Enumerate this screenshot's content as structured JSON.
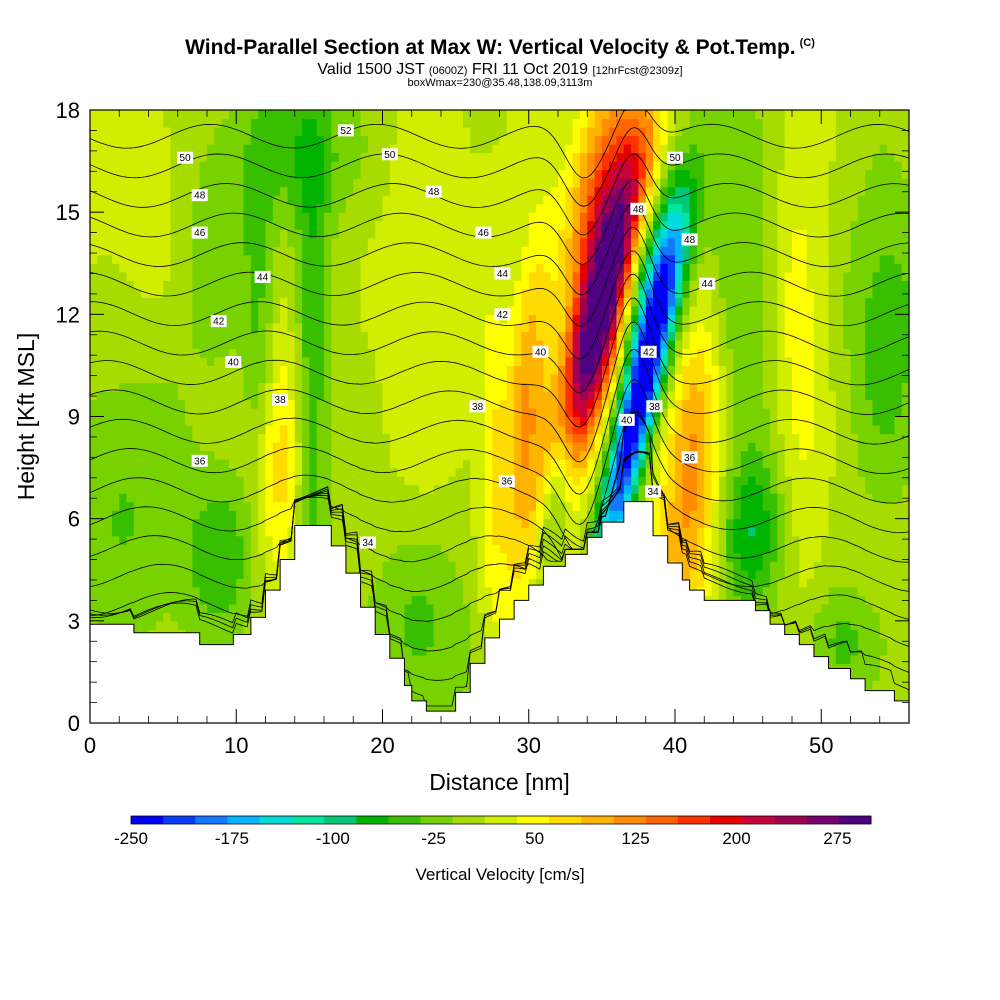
{
  "header": {
    "title": "Wind-Parallel Section at Max W: Vertical Velocity & Pot.Temp.",
    "title_mark": "(C)",
    "valid_prefix": "Valid 1500 JST",
    "valid_utc": "(0600Z)",
    "valid_date": "FRI 11 Oct 2019",
    "forecast_note": "[12hrFcst@2309z]",
    "box_note": "boxWmax=230@35.48,138.09,3113m"
  },
  "chart_data": {
    "type": "heatmap",
    "xlabel": "Distance [nm]",
    "ylabel": "Height [Kft MSL]",
    "xlim": [
      0,
      56
    ],
    "ylim": [
      0,
      18
    ],
    "x_ticks": [
      0,
      10,
      20,
      30,
      40,
      50
    ],
    "y_ticks": [
      0,
      3,
      6,
      9,
      12,
      15,
      18
    ],
    "colorbar": {
      "label": "Vertical Velocity [cm/s]",
      "min": -250,
      "max": 300,
      "tick_values": [
        -250,
        -175,
        -100,
        -25,
        50,
        125,
        200,
        275
      ],
      "tick_labels": [
        "-250",
        "-175",
        "-100",
        "-25",
        "50",
        "125",
        "200",
        "275"
      ],
      "colors": [
        "#0000ff",
        "#0a3cff",
        "#1478ff",
        "#00b4ff",
        "#00dcdc",
        "#00e6a0",
        "#00c878",
        "#00b400",
        "#38c000",
        "#78d200",
        "#a8dc00",
        "#d2ee00",
        "#ffff00",
        "#ffdc00",
        "#ffb400",
        "#ff8c00",
        "#ff6400",
        "#ff3200",
        "#e60000",
        "#c8003c",
        "#a00050",
        "#78006e",
        "#500082"
      ]
    },
    "terrain_profile": [
      [
        0,
        2.9
      ],
      [
        3,
        2.9
      ],
      [
        3,
        2.65
      ],
      [
        7.5,
        2.65
      ],
      [
        7.5,
        2.3
      ],
      [
        9.8,
        2.3
      ],
      [
        9.8,
        2.6
      ],
      [
        11,
        2.6
      ],
      [
        11,
        3.1
      ],
      [
        12,
        3.1
      ],
      [
        12,
        3.9
      ],
      [
        13,
        3.9
      ],
      [
        13,
        4.8
      ],
      [
        14,
        4.8
      ],
      [
        14,
        5.8
      ],
      [
        16.5,
        5.8
      ],
      [
        16.5,
        5.2
      ],
      [
        17.5,
        5.2
      ],
      [
        17.5,
        4.4
      ],
      [
        18.5,
        4.4
      ],
      [
        18.5,
        3.4
      ],
      [
        19.5,
        3.4
      ],
      [
        19.5,
        2.6
      ],
      [
        20.5,
        2.6
      ],
      [
        20.5,
        1.9
      ],
      [
        21.5,
        1.9
      ],
      [
        21.5,
        1.1
      ],
      [
        22,
        1.1
      ],
      [
        22,
        0.65
      ],
      [
        23,
        0.65
      ],
      [
        23,
        0.35
      ],
      [
        25,
        0.35
      ],
      [
        25,
        0.9
      ],
      [
        26,
        0.9
      ],
      [
        26,
        1.75
      ],
      [
        27,
        1.75
      ],
      [
        27,
        2.5
      ],
      [
        28,
        2.5
      ],
      [
        28,
        3.05
      ],
      [
        29,
        3.05
      ],
      [
        29,
        3.6
      ],
      [
        30,
        3.6
      ],
      [
        30,
        4.05
      ],
      [
        31,
        4.05
      ],
      [
        31,
        4.6
      ],
      [
        32.5,
        4.6
      ],
      [
        32.5,
        4.95
      ],
      [
        34,
        4.95
      ],
      [
        34,
        5.45
      ],
      [
        35,
        5.45
      ],
      [
        35,
        5.9
      ],
      [
        36.5,
        5.9
      ],
      [
        36.5,
        6.5
      ],
      [
        38.5,
        6.5
      ],
      [
        38.5,
        5.5
      ],
      [
        39.5,
        5.5
      ],
      [
        39.5,
        4.7
      ],
      [
        40.5,
        4.7
      ],
      [
        40.5,
        4.2
      ],
      [
        41,
        4.2
      ],
      [
        41,
        3.9
      ],
      [
        42,
        3.9
      ],
      [
        42,
        3.6
      ],
      [
        45.5,
        3.6
      ],
      [
        45.5,
        3.3
      ],
      [
        46.5,
        3.3
      ],
      [
        46.5,
        2.9
      ],
      [
        47.5,
        2.9
      ],
      [
        47.5,
        2.6
      ],
      [
        48.5,
        2.6
      ],
      [
        48.5,
        2.3
      ],
      [
        49.5,
        2.3
      ],
      [
        49.5,
        1.95
      ],
      [
        50.5,
        1.95
      ],
      [
        50.5,
        1.6
      ],
      [
        52,
        1.6
      ],
      [
        52,
        1.3
      ],
      [
        53,
        1.3
      ],
      [
        53,
        0.95
      ],
      [
        55,
        0.95
      ],
      [
        55,
        0.65
      ],
      [
        56,
        0.65
      ]
    ],
    "velocity_features": [
      {
        "x": 34.6,
        "y": 11.5,
        "sx": 1.2,
        "sy": 3.8,
        "slope": 0.55,
        "value": 300
      },
      {
        "x": 35.0,
        "y": 15.5,
        "sx": 1.6,
        "sy": 2.6,
        "slope": 0.3,
        "value": 140
      },
      {
        "x": 37.4,
        "y": 9.2,
        "sx": 0.9,
        "sy": 3.6,
        "slope": 0.5,
        "value": -270
      },
      {
        "x": 38.8,
        "y": 13.2,
        "sx": 1.5,
        "sy": 2.0,
        "slope": 0.35,
        "value": -120
      },
      {
        "x": 32.0,
        "y": 7.0,
        "sx": 0.8,
        "sy": 2.0,
        "slope": 0.35,
        "value": -140
      },
      {
        "x": 29.8,
        "y": 9.3,
        "sx": 1.0,
        "sy": 3.6,
        "slope": 0.15,
        "value": 95
      },
      {
        "x": 41.0,
        "y": 6.0,
        "sx": 1.7,
        "sy": 3.0,
        "slope": 0.2,
        "value": 85
      },
      {
        "x": 41.3,
        "y": 9.5,
        "sx": 1.2,
        "sy": 2.5,
        "slope": 0.1,
        "value": 50
      },
      {
        "x": 12.8,
        "y": 7.8,
        "sx": 1.2,
        "sy": 2.6,
        "slope": 0.0,
        "value": 70
      },
      {
        "x": 15.2,
        "y": 10.0,
        "sx": 0.8,
        "sy": 6.0,
        "slope": 0.0,
        "value": -65
      },
      {
        "x": 11.6,
        "y": 11.5,
        "sx": 0.8,
        "sy": 3.5,
        "slope": 0.0,
        "value": -50
      },
      {
        "x": 8.5,
        "y": 14.0,
        "sx": 2.0,
        "sy": 3.0,
        "slope": 0.0,
        "value": -40
      },
      {
        "x": 14.5,
        "y": 16.8,
        "sx": 3.0,
        "sy": 1.6,
        "slope": 0.0,
        "value": -55
      },
      {
        "x": 2.5,
        "y": 6.5,
        "sx": 3.0,
        "sy": 3.5,
        "slope": 0.0,
        "value": -45
      },
      {
        "x": 9.0,
        "y": 4.8,
        "sx": 1.8,
        "sy": 1.8,
        "slope": 0.0,
        "value": -60
      },
      {
        "x": 22.5,
        "y": 2.8,
        "sx": 3.0,
        "sy": 2.2,
        "slope": 0.0,
        "value": -50
      },
      {
        "x": 27.5,
        "y": 7.5,
        "sx": 0.7,
        "sy": 4.0,
        "slope": 0.0,
        "value": 45
      },
      {
        "x": 45.5,
        "y": 5.6,
        "sx": 1.7,
        "sy": 1.6,
        "slope": 0.0,
        "value": -75
      },
      {
        "x": 44.5,
        "y": 12.0,
        "sx": 1.6,
        "sy": 6.0,
        "slope": 0.0,
        "value": -45
      },
      {
        "x": 48.5,
        "y": 10.5,
        "sx": 1.3,
        "sy": 5.0,
        "slope": 0.0,
        "value": 40
      },
      {
        "x": 54.5,
        "y": 11.5,
        "sx": 2.0,
        "sy": 3.5,
        "slope": 0.0,
        "value": -60
      },
      {
        "x": 51.5,
        "y": 2.3,
        "sx": 2.0,
        "sy": 1.2,
        "slope": 0.0,
        "value": -50
      },
      {
        "x": 23.0,
        "y": 13.0,
        "sx": 2.0,
        "sy": 5.0,
        "slope": 0.0,
        "value": 25
      },
      {
        "x": 4.0,
        "y": 15.0,
        "sx": 3.0,
        "sy": 3.0,
        "slope": 0.0,
        "value": 20
      }
    ],
    "theta_contours": [
      {
        "value": 34,
        "label": "34",
        "label_at": [
          [
            19,
            5.3
          ],
          [
            38.5,
            6.8
          ]
        ]
      },
      {
        "value": 35,
        "label": "",
        "label_at": []
      },
      {
        "value": 36,
        "label": "36",
        "label_at": [
          [
            7.5,
            7.7
          ],
          [
            28.5,
            7.1
          ],
          [
            41,
            7.8
          ]
        ]
      },
      {
        "value": 37,
        "label": "",
        "label_at": []
      },
      {
        "value": 38,
        "label": "38",
        "label_at": [
          [
            13,
            9.5
          ],
          [
            26.5,
            9.3
          ],
          [
            38.6,
            9.3
          ]
        ]
      },
      {
        "value": 39,
        "label": "",
        "label_at": []
      },
      {
        "value": 40,
        "label": "40",
        "label_at": [
          [
            9.8,
            10.6
          ],
          [
            30.8,
            10.9
          ],
          [
            36.7,
            8.9
          ]
        ]
      },
      {
        "value": 41,
        "label": "",
        "label_at": []
      },
      {
        "value": 42,
        "label": "42",
        "label_at": [
          [
            8.8,
            11.8
          ],
          [
            28.2,
            12.0
          ],
          [
            38.2,
            10.9
          ]
        ]
      },
      {
        "value": 43,
        "label": "",
        "label_at": []
      },
      {
        "value": 44,
        "label": "44",
        "label_at": [
          [
            11.8,
            13.1
          ],
          [
            28.2,
            13.2
          ],
          [
            42.2,
            12.9
          ]
        ]
      },
      {
        "value": 45,
        "label": "",
        "label_at": []
      },
      {
        "value": 46,
        "label": "46",
        "label_at": [
          [
            7.5,
            14.4
          ],
          [
            26.9,
            14.4
          ]
        ]
      },
      {
        "value": 47,
        "label": "",
        "label_at": []
      },
      {
        "value": 48,
        "label": "48",
        "label_at": [
          [
            7.5,
            15.5
          ],
          [
            23.5,
            15.6
          ],
          [
            37.5,
            15.1
          ],
          [
            41,
            14.2
          ]
        ]
      },
      {
        "value": 49,
        "label": "",
        "label_at": []
      },
      {
        "value": 50,
        "label": "50",
        "label_at": [
          [
            6.5,
            16.6
          ],
          [
            20.5,
            16.7
          ],
          [
            40,
            16.6
          ]
        ]
      },
      {
        "value": 51,
        "label": "",
        "label_at": []
      },
      {
        "value": 52,
        "label": "52",
        "label_at": [
          [
            17.5,
            17.4
          ]
        ]
      },
      {
        "value": 53,
        "label": "",
        "label_at": []
      }
    ]
  }
}
